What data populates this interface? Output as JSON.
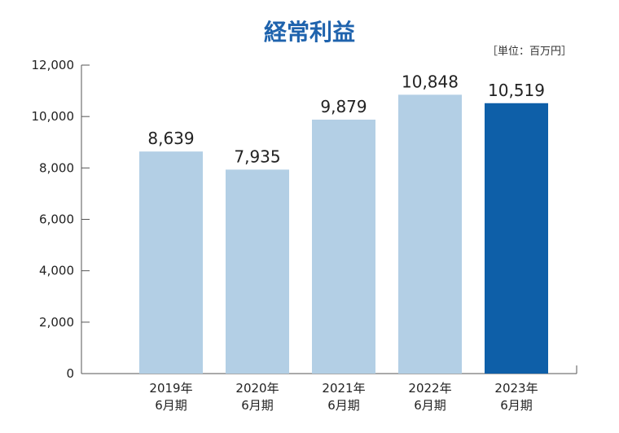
{
  "chart_data": {
    "type": "bar",
    "title": "経常利益",
    "unit_note": "［単位：百万円］",
    "categories": [
      [
        "2019年",
        "6月期"
      ],
      [
        "2020年",
        "6月期"
      ],
      [
        "2021年",
        "6月期"
      ],
      [
        "2022年",
        "6月期"
      ],
      [
        "2023年",
        "6月期"
      ]
    ],
    "values": [
      8639,
      7935,
      9879,
      10848,
      10519
    ],
    "data_labels": [
      "8,639",
      "7,935",
      "9,879",
      "10,848",
      "10,519"
    ],
    "ylim": [
      0,
      12000
    ],
    "yticks": [
      0,
      2000,
      4000,
      6000,
      8000,
      10000,
      12000
    ],
    "ytick_labels": [
      "0",
      "2,000",
      "4,000",
      "6,000",
      "8,000",
      "10,000",
      "12,000"
    ],
    "xlabel": "",
    "ylabel": "",
    "grid": false,
    "colors": {
      "bar": "#b3cfe5",
      "highlight": "#0e5fa8",
      "axis": "#555555",
      "title": "#1f63ad"
    },
    "highlight_index": 4
  }
}
